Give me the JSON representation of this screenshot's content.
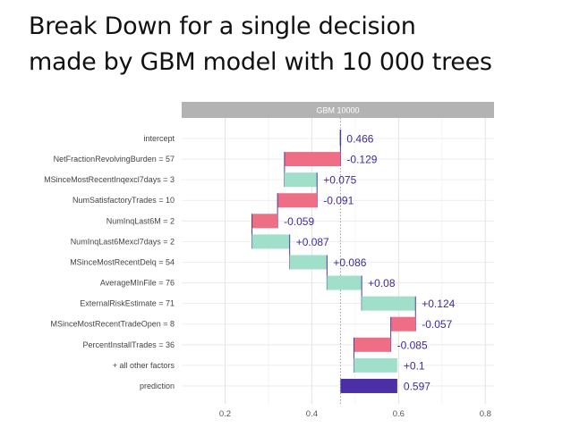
{
  "page_title": {
    "line1": "Break Down for a single decision",
    "line2": "made by GBM model with 10 000 trees"
  },
  "chart_data": {
    "type": "bar",
    "subtype": "break-down-waterfall",
    "panel_title": "GBM 10000",
    "xlim": [
      0.1,
      0.82
    ],
    "x_ticks": [
      0.2,
      0.4,
      0.6,
      0.8
    ],
    "x_tick_labels": [
      "0.2",
      "0.4",
      "0.6",
      "0.8"
    ],
    "grid": true,
    "reference_line": 0.466,
    "colors": {
      "positive": "#a0e0cb",
      "negative": "#ee6e85",
      "intercept": "#4d3c9e",
      "prediction": "#4a2fa6",
      "label": "#3f2a9c"
    },
    "bars": [
      {
        "label": "intercept",
        "start": 0.466,
        "end": 0.466,
        "contribution": "0.466",
        "kind": "intercept"
      },
      {
        "label": "NetFractionRevolvingBurden = 57",
        "start": 0.466,
        "end": 0.337,
        "contribution": "-0.129",
        "kind": "negative"
      },
      {
        "label": "MSinceMostRecentInqexcl7days = 3",
        "start": 0.337,
        "end": 0.412,
        "contribution": "+0.075",
        "kind": "positive"
      },
      {
        "label": "NumSatisfactoryTrades = 10",
        "start": 0.412,
        "end": 0.321,
        "contribution": "-0.091",
        "kind": "negative"
      },
      {
        "label": "NumInqLast6M = 2",
        "start": 0.321,
        "end": 0.262,
        "contribution": "-0.059",
        "kind": "negative"
      },
      {
        "label": "NumInqLast6Mexcl7days = 2",
        "start": 0.262,
        "end": 0.349,
        "contribution": "+0.087",
        "kind": "positive"
      },
      {
        "label": "MSinceMostRecentDelq = 54",
        "start": 0.349,
        "end": 0.435,
        "contribution": "+0.086",
        "kind": "positive"
      },
      {
        "label": "AverageMInFile = 76",
        "start": 0.435,
        "end": 0.515,
        "contribution": "+0.08",
        "kind": "positive"
      },
      {
        "label": "ExternalRiskEstimate = 71",
        "start": 0.515,
        "end": 0.639,
        "contribution": "+0.124",
        "kind": "positive"
      },
      {
        "label": "MSinceMostRecentTradeOpen = 8",
        "start": 0.639,
        "end": 0.582,
        "contribution": "-0.057",
        "kind": "negative"
      },
      {
        "label": "PercentInstallTrades = 36",
        "start": 0.582,
        "end": 0.497,
        "contribution": "-0.085",
        "kind": "negative"
      },
      {
        "label": "+ all other factors",
        "start": 0.497,
        "end": 0.597,
        "contribution": "+0.1",
        "kind": "positive"
      },
      {
        "label": "prediction",
        "start": 0.466,
        "end": 0.597,
        "contribution": "0.597",
        "kind": "prediction"
      }
    ]
  }
}
